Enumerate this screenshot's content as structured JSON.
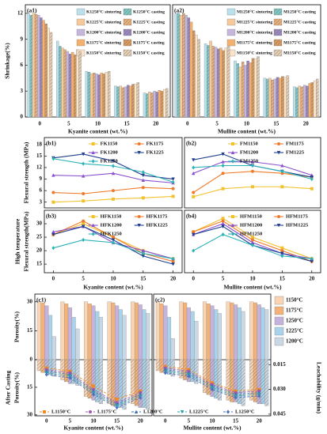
{
  "chart_data": [
    {
      "type": "bar",
      "label": "(a1)",
      "ylabel": "Shrinkage(%)",
      "xlabel": "Kyanite content (wt.%)",
      "categories": [
        "0",
        "5",
        "10",
        "15",
        "20"
      ],
      "ylim": [
        0,
        13
      ],
      "yticks": [
        0,
        3,
        6,
        9,
        12
      ],
      "series": [
        {
          "name": "K1250°C sintering",
          "color": "#b9e0ec",
          "hatch": false,
          "values": [
            12,
            8.8,
            5.3,
            3.6,
            2.8
          ]
        },
        {
          "name": "K1250°C casting",
          "color": "#7fc6c4",
          "hatch": true,
          "values": [
            11.8,
            8.2,
            5.2,
            3.5,
            2.7
          ]
        },
        {
          "name": "K1225°C sintering",
          "color": "#f6c89a",
          "hatch": false,
          "values": [
            12,
            8,
            5,
            3.6,
            2.9
          ]
        },
        {
          "name": "K1225°C casting",
          "color": "#e8b07a",
          "hatch": true,
          "values": [
            11.9,
            7.8,
            5.1,
            3.4,
            2.8
          ]
        },
        {
          "name": "K1200°C sintering",
          "color": "#c7b6dc",
          "hatch": false,
          "values": [
            11.8,
            7.6,
            5,
            3.5,
            3
          ]
        },
        {
          "name": "K1200°C casting",
          "color": "#9b88c0",
          "hatch": true,
          "values": [
            11.5,
            7.3,
            4.9,
            3.7,
            2.9
          ]
        },
        {
          "name": "K1175°C sintering",
          "color": "#f4b06c",
          "hatch": false,
          "values": [
            11.2,
            7.5,
            5.1,
            3.6,
            3.1
          ]
        },
        {
          "name": "K1175°C casting",
          "color": "#d99a5e",
          "hatch": true,
          "values": [
            10.8,
            7.2,
            5,
            3.8,
            3
          ]
        },
        {
          "name": "K1150°C sintering",
          "color": "#fbe3c8",
          "hatch": false,
          "values": [
            10.3,
            7.8,
            5.2,
            3.8,
            3.2
          ]
        },
        {
          "name": "K1150°C casting",
          "color": "#e6cfb4",
          "hatch": true,
          "values": [
            9.8,
            7.6,
            5.3,
            4,
            3.3
          ]
        }
      ]
    },
    {
      "type": "bar",
      "label": "(a2)",
      "xlabel": "Mullite content (wt.%)",
      "categories": [
        "0",
        "5",
        "10",
        "15",
        "20"
      ],
      "ylim": [
        0,
        13
      ],
      "series": [
        {
          "name": "M1250°C sintering",
          "color": "#b9e0ec",
          "hatch": false,
          "values": [
            12,
            8.5,
            6.5,
            4.5,
            3.5
          ]
        },
        {
          "name": "M1250°C casting",
          "color": "#7fc6c4",
          "hatch": true,
          "values": [
            12,
            8.3,
            6.2,
            4.4,
            3.4
          ]
        },
        {
          "name": "M1225°C sintering",
          "color": "#f6c89a",
          "hatch": false,
          "values": [
            11.8,
            8.8,
            5.8,
            4.5,
            3.6
          ]
        },
        {
          "name": "M1225°C casting",
          "color": "#e8b07a",
          "hatch": true,
          "values": [
            12,
            8.2,
            6.4,
            4.3,
            3.5
          ]
        },
        {
          "name": "M1200°C sintering",
          "color": "#c7b6dc",
          "hatch": false,
          "values": [
            11.8,
            8.1,
            6,
            4.4,
            3.7
          ]
        },
        {
          "name": "M1200°C casting",
          "color": "#9b88c0",
          "hatch": true,
          "values": [
            11.5,
            7.9,
            6.5,
            4.6,
            3.6
          ]
        },
        {
          "name": "M1175°C sintering",
          "color": "#f4b06c",
          "hatch": false,
          "values": [
            11,
            8,
            6.3,
            4.5,
            3.9
          ]
        },
        {
          "name": "M1175°C casting",
          "color": "#d99a5e",
          "hatch": true,
          "values": [
            10,
            7.7,
            6.8,
            4.7,
            4
          ]
        },
        {
          "name": "M1150°C sintering",
          "color": "#fbe3c8",
          "hatch": false,
          "values": [
            9.5,
            8,
            6.7,
            4.6,
            4.2
          ]
        },
        {
          "name": "M1150°C casting",
          "color": "#e6cfb4",
          "hatch": true,
          "values": [
            9,
            8.2,
            7,
            4.8,
            4.4
          ]
        }
      ]
    },
    {
      "type": "line",
      "label": "(b1)",
      "ylabel": "Flexural strength (MPa)",
      "x": [
        0,
        5,
        10,
        15,
        20
      ],
      "xlim": [
        -1.5,
        21.5
      ],
      "ylim": [
        1.5,
        19.8
      ],
      "yticks": [
        3,
        6,
        9,
        12,
        15,
        18
      ],
      "series": [
        {
          "name": "FK1150",
          "color": "#f2c12e",
          "values": [
            3,
            3.3,
            3.8,
            4.1,
            4.5
          ]
        },
        {
          "name": "FK1175",
          "color": "#ef7b2a",
          "values": [
            5.5,
            5.2,
            6,
            6.8,
            6.5
          ]
        },
        {
          "name": "FK1200",
          "color": "#8a4fcf",
          "values": [
            10,
            9.8,
            10.5,
            8.7,
            8
          ]
        },
        {
          "name": "FK1225",
          "color": "#1f3f8f",
          "values": [
            14.5,
            15.5,
            13.7,
            10,
            9
          ]
        },
        {
          "name": "FK1250",
          "color": "#2bb3b8",
          "values": [
            14.3,
            13,
            12.4,
            10.8,
            8.2
          ]
        }
      ]
    },
    {
      "type": "line",
      "label": "(b2)",
      "x": [
        0,
        5,
        10,
        15,
        20
      ],
      "xlim": [
        -1.5,
        21.5
      ],
      "ylim": [
        1.5,
        19.8
      ],
      "series": [
        {
          "name": "FM1150",
          "color": "#f2c12e",
          "values": [
            4.4,
            6.5,
            7,
            7,
            6.5
          ]
        },
        {
          "name": "FM1175",
          "color": "#ef7b2a",
          "values": [
            5.5,
            10.5,
            11,
            10.5,
            9.5
          ]
        },
        {
          "name": "FM1200",
          "color": "#8a4fcf",
          "values": [
            10.5,
            13.5,
            13.5,
            12.5,
            10
          ]
        },
        {
          "name": "FM1225",
          "color": "#1f3f8f",
          "values": [
            14,
            15.5,
            12.5,
            11,
            9.5
          ]
        },
        {
          "name": "FM1250",
          "color": "#2bb3b8",
          "values": [
            12,
            12.5,
            12.5,
            11,
            9
          ]
        }
      ]
    },
    {
      "type": "line",
      "label": "(b3)",
      "ylabel": [
        "High temperature",
        "Flexural strength(MPa)"
      ],
      "xlabel": "Kyanite content (wt.%)",
      "x": [
        0,
        5,
        10,
        15,
        20
      ],
      "xlim": [
        -1.5,
        21.5
      ],
      "xticks": [
        0,
        5,
        10,
        15,
        20
      ],
      "ylim": [
        11.8,
        35
      ],
      "yticks": [
        15,
        20,
        25,
        30
      ],
      "series": [
        {
          "name": "HFK1150",
          "color": "#f2c12e",
          "values": [
            26,
            30,
            25,
            20,
            17
          ]
        },
        {
          "name": "HFK1175",
          "color": "#ef7b2a",
          "values": [
            26,
            31,
            25,
            19,
            16
          ]
        },
        {
          "name": "HFK1200",
          "color": "#8a4fcf",
          "values": [
            27,
            29,
            23,
            20,
            17
          ]
        },
        {
          "name": "HFK1225",
          "color": "#1f3f8f",
          "values": [
            26,
            29,
            24,
            18,
            15
          ]
        },
        {
          "name": "HFK1250",
          "color": "#2bb3b8",
          "values": [
            21,
            24,
            23,
            19,
            17
          ]
        }
      ]
    },
    {
      "type": "line",
      "label": "(b4)",
      "xlabel": "Mullite content (wt.%)",
      "x": [
        0,
        5,
        10,
        15,
        20
      ],
      "xlim": [
        -1.5,
        21.5
      ],
      "xticks": [
        0,
        5,
        10,
        15,
        20
      ],
      "ylim": [
        11.8,
        35
      ],
      "series": [
        {
          "name": "HFM1150",
          "color": "#f2c12e",
          "values": [
            27,
            32,
            25,
            21,
            17
          ]
        },
        {
          "name": "HFM1175",
          "color": "#ef7b2a",
          "values": [
            27,
            31,
            24,
            20,
            16
          ]
        },
        {
          "name": "HFM1200",
          "color": "#8a4fcf",
          "values": [
            26,
            30,
            23,
            19,
            17
          ]
        },
        {
          "name": "HFM1225",
          "color": "#1f3f8f",
          "values": [
            26,
            29,
            22,
            19,
            16
          ]
        },
        {
          "name": "HFM1250",
          "color": "#2bb3b8",
          "values": [
            20,
            26,
            22,
            18,
            17
          ]
        }
      ]
    },
    {
      "type": "bar-line",
      "label": "(c1)",
      "ylabel": "Porosity(%)",
      "xlabel": "Kyanite content (wt.%)",
      "categories": [
        "0",
        "5",
        "10",
        "15",
        "20"
      ],
      "ylim": [
        0,
        34
      ],
      "yticks": [
        0,
        15,
        30
      ],
      "series": [
        {
          "name": "1150°C",
          "color": "#f9d5b3",
          "values": [
            30,
            30,
            30,
            30,
            30
          ]
        },
        {
          "name": "1175°C",
          "color": "#f3b27a",
          "values": [
            29.5,
            29,
            29,
            29.5,
            29.5
          ]
        },
        {
          "name": "1250°C",
          "color": "#c5b3dd",
          "values": [
            28,
            27,
            28,
            28,
            28.5
          ]
        },
        {
          "name": "1225°C",
          "color": "#a9d3ea",
          "values": [
            23,
            22,
            25,
            26,
            26
          ]
        },
        {
          "name": "1200°C",
          "color": "#c9d8e4",
          "values": [
            12,
            16,
            22,
            23,
            24
          ]
        }
      ],
      "lower": {
        "ylabel": [
          "After Casting",
          "Porosity(%)"
        ],
        "ylim": [
          0,
          30.5
        ],
        "yticks": [
          15,
          30
        ],
        "series": [
          {
            "color": "#f9d5b3",
            "values": [
              6,
              11,
              20,
              24,
              24
            ]
          },
          {
            "color": "#f3b27a",
            "values": [
              7,
              12,
              21,
              25,
              25
            ]
          },
          {
            "color": "#c5b3dd",
            "values": [
              7,
              13,
              22,
              25,
              26
            ]
          },
          {
            "color": "#a9d3ea",
            "values": [
              8,
              13,
              23,
              26,
              26
            ]
          },
          {
            "color": "#c9d8e4",
            "values": [
              9,
              14,
              24,
              27,
              27
            ]
          }
        ]
      },
      "y2lim": [
        0.012,
        0.046
      ],
      "lines": [
        {
          "name": "L1150°C",
          "color": "#f08a24",
          "values": [
            0.017,
            0.019,
            0.028,
            0.036,
            0.031
          ]
        },
        {
          "name": "L1175°C",
          "color": "#a05ab0",
          "values": [
            0.018,
            0.02,
            0.03,
            0.038,
            0.032
          ]
        },
        {
          "name": "L1200°C",
          "color": "#3b6fb5",
          "values": [
            0.019,
            0.021,
            0.031,
            0.039,
            0.033
          ]
        },
        {
          "name": "L1225°C",
          "color": "#2a9fa8",
          "values": [
            0.02,
            0.022,
            0.032,
            0.04,
            0.034
          ]
        },
        {
          "name": "L1250°C",
          "color": "#4a6dc0",
          "values": [
            0.021,
            0.023,
            0.033,
            0.041,
            0.035
          ]
        }
      ]
    },
    {
      "type": "bar-line",
      "label": "(c2)",
      "xlabel": "Mullite content (wt.%)",
      "y2label": "Leachability (g/min)",
      "categories": [
        "0",
        "5",
        "10",
        "15",
        "20"
      ],
      "ylim": [
        0,
        34
      ],
      "series": [
        {
          "color": "#f9d5b3",
          "values": [
            30,
            30,
            30,
            30,
            30
          ]
        },
        {
          "color": "#f3b27a",
          "values": [
            29,
            29.5,
            29,
            29.5,
            29.5
          ]
        },
        {
          "color": "#c5b3dd",
          "values": [
            28,
            27,
            28,
            28.5,
            28.5
          ]
        },
        {
          "color": "#a9d3ea",
          "values": [
            22,
            25,
            26,
            27,
            27
          ]
        },
        {
          "color": "#c9d8e4",
          "values": [
            11,
            20,
            24,
            25,
            26
          ]
        }
      ],
      "lower": {
        "ylim": [
          0,
          30.5
        ],
        "series": [
          {
            "color": "#f9d5b3",
            "values": [
              6,
              10,
              18,
              22,
              22
            ]
          },
          {
            "color": "#f3b27a",
            "values": [
              7,
              11,
              19,
              23,
              23
            ]
          },
          {
            "color": "#c5b3dd",
            "values": [
              7,
              12,
              20,
              23,
              24
            ]
          },
          {
            "color": "#a9d3ea",
            "values": [
              8,
              12,
              21,
              24,
              24
            ]
          },
          {
            "color": "#c9d8e4",
            "values": [
              9,
              13,
              22,
              25,
              25
            ]
          }
        ]
      },
      "y2lim": [
        0.012,
        0.046
      ],
      "y2ticks": [
        0.015,
        {
          "value": 0.03,
          "label": "0.030"
        },
        0.045
      ],
      "lines": [
        {
          "color": "#f08a24",
          "values": [
            0.016,
            0.018,
            0.026,
            0.031,
            0.03
          ]
        },
        {
          "color": "#a05ab0",
          "values": [
            0.017,
            0.019,
            0.027,
            0.032,
            0.031
          ]
        },
        {
          "color": "#3b6fb5",
          "values": [
            0.018,
            0.02,
            0.028,
            0.033,
            0.032
          ]
        },
        {
          "color": "#2a9fa8",
          "values": [
            0.019,
            0.021,
            0.029,
            0.034,
            0.033
          ]
        },
        {
          "color": "#4a6dc0",
          "values": [
            0.02,
            0.022,
            0.03,
            0.035,
            0.034
          ]
        }
      ]
    }
  ]
}
